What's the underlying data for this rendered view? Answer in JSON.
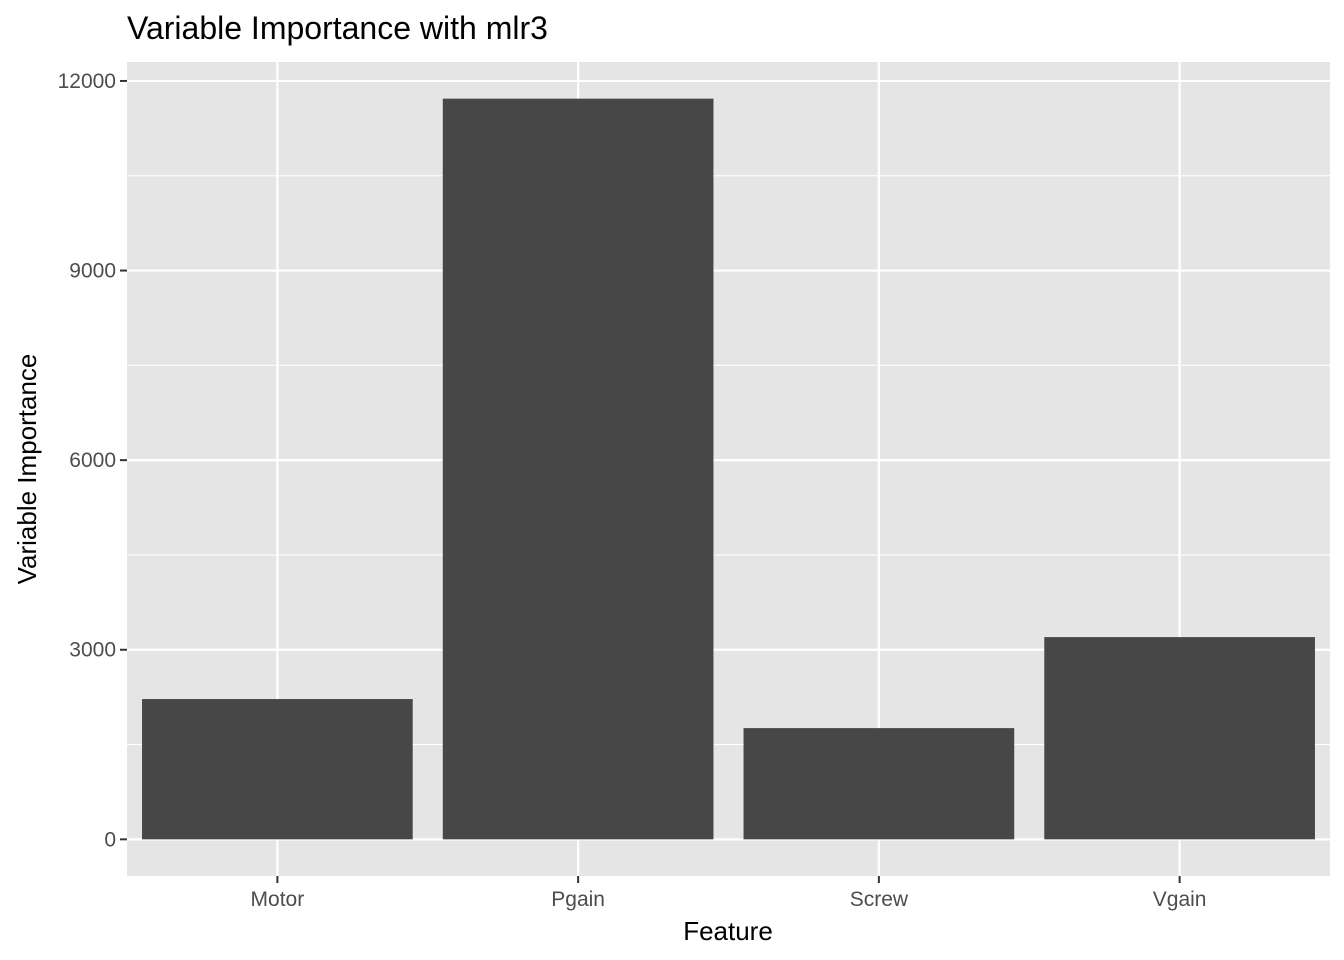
{
  "chart_data": {
    "type": "bar",
    "title": "Variable Importance with mlr3",
    "xlabel": "Feature",
    "ylabel": "Variable Importance",
    "categories": [
      "Motor",
      "Pgain",
      "Screw",
      "Vgain"
    ],
    "values": [
      2220,
      11720,
      1760,
      3200
    ],
    "ylim": [
      -580,
      12300
    ],
    "yticks": [
      0,
      3000,
      6000,
      9000,
      12000
    ],
    "ytick_labels": [
      "0",
      "3000",
      "6000",
      "9000",
      "12000"
    ],
    "grid": true,
    "legend": "none",
    "colors": {
      "bar": "#474747",
      "panel_background": "#e5e5e5",
      "grid": "#ffffff",
      "tick_label": "#4d4d4d",
      "tick_mark": "#333333"
    }
  }
}
